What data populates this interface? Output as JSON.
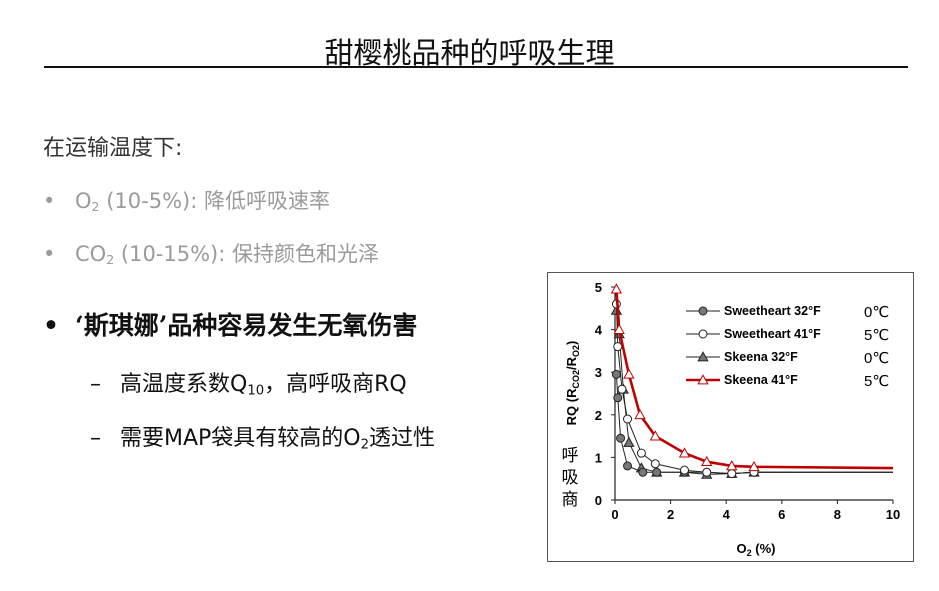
{
  "slide": {
    "title": "甜樱桃品种的呼吸生理",
    "intro": "在运输温度下:",
    "bullets": [
      {
        "bullet": "•",
        "lead": "O",
        "sub": "2",
        "rest": " (10-5%): 降低呼吸速率"
      },
      {
        "bullet": "•",
        "lead": "CO",
        "sub": "2",
        "rest": " (10-15%): 保持颜色和光泽"
      },
      {
        "bullet": "•",
        "text": "‘斯琪娜’品种容易发生无氧伤害"
      }
    ],
    "subbullets": [
      {
        "dash": "–",
        "lead": "高温度系数Q",
        "sub": "10",
        "rest": "，高呼吸商RQ"
      },
      {
        "dash": "–",
        "lead": "需要MAP袋具有较高的O",
        "sub": "2",
        "rest": "透过性"
      }
    ]
  },
  "chart_data": {
    "type": "line",
    "xlabel": {
      "main": "O",
      "sub": "2",
      "tail": " (%)"
    },
    "ylabel": {
      "a": "RQ (R",
      "sub1": "CO2",
      "b": "/R",
      "sub2": "O2",
      "c": ")"
    },
    "ylabel_cn": [
      "呼",
      "吸",
      "商"
    ],
    "xlim": [
      0,
      10
    ],
    "ylim": [
      0,
      5
    ],
    "xticks": [
      0,
      2,
      4,
      6,
      8,
      10
    ],
    "yticks": [
      0,
      1,
      2,
      3,
      4,
      5
    ],
    "grid": false,
    "legend_position": "top-right",
    "series": [
      {
        "name": "Sweetheart 32°F",
        "temp": "0℃",
        "marker": "circle-filled",
        "color": "#222222",
        "points": [
          [
            0.05,
            2.95
          ],
          [
            0.1,
            2.4
          ],
          [
            0.2,
            1.45
          ],
          [
            0.45,
            0.8
          ],
          [
            1.0,
            0.65
          ],
          [
            1.5,
            0.65
          ],
          [
            2.5,
            0.65
          ],
          [
            3.3,
            0.65
          ],
          [
            4.2,
            0.62
          ],
          [
            5.0,
            0.65
          ],
          [
            10,
            0.65
          ]
        ]
      },
      {
        "name": "Sweetheart 41°F",
        "temp": "5℃",
        "marker": "circle-open",
        "color": "#222222",
        "points": [
          [
            0.05,
            4.6
          ],
          [
            0.1,
            3.6
          ],
          [
            0.25,
            2.6
          ],
          [
            0.45,
            1.9
          ],
          [
            0.95,
            1.1
          ],
          [
            1.45,
            0.85
          ],
          [
            2.5,
            0.7
          ],
          [
            3.3,
            0.65
          ],
          [
            4.2,
            0.62
          ],
          [
            5.0,
            0.65
          ],
          [
            10,
            0.65
          ]
        ]
      },
      {
        "name": "Skeena 32°F",
        "temp": "0℃",
        "marker": "triangle-filled",
        "color": "#222222",
        "points": [
          [
            0.05,
            4.45
          ],
          [
            0.15,
            3.9
          ],
          [
            0.3,
            2.6
          ],
          [
            0.5,
            1.35
          ],
          [
            0.95,
            0.75
          ],
          [
            1.5,
            0.65
          ],
          [
            2.5,
            0.65
          ],
          [
            3.3,
            0.6
          ],
          [
            4.2,
            0.62
          ],
          [
            5.0,
            0.65
          ],
          [
            10,
            0.65
          ]
        ]
      },
      {
        "name": "Skeena 41°F",
        "temp": "5℃",
        "marker": "triangle-open",
        "color": "#c00000",
        "points": [
          [
            0.05,
            4.95
          ],
          [
            0.15,
            4.0
          ],
          [
            0.5,
            2.95
          ],
          [
            0.9,
            2.0
          ],
          [
            1.45,
            1.5
          ],
          [
            2.5,
            1.1
          ],
          [
            3.3,
            0.9
          ],
          [
            4.2,
            0.8
          ],
          [
            5.0,
            0.78
          ],
          [
            10,
            0.75
          ]
        ]
      }
    ]
  }
}
